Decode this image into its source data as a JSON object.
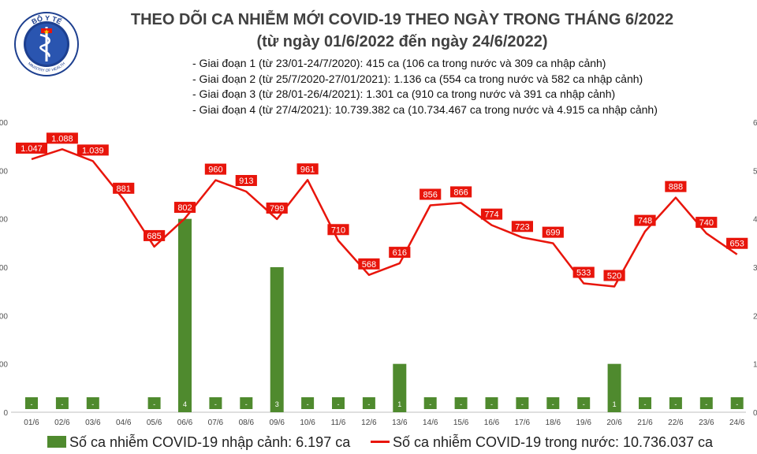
{
  "header": {
    "title": "THEO DÕI CA NHIỄM MỚI COVID-19 THEO NGÀY TRONG THÁNG 6/2022",
    "subtitle": "(từ ngày 01/6/2022 đến ngày 24/6/2022)",
    "phases": [
      "- Giai đoạn 1 (từ 23/01-24/7/2020): 415 ca (106 ca trong nước và 309 ca nhập cảnh)",
      "- Giai đoạn 2 (từ 25/7/2020-27/01/2021): 1.136 ca (554 ca trong nước và 582 ca nhập cảnh)",
      "- Giai đoạn 3 (từ 28/01-26/4/2021): 1.301 ca (910 ca trong nước và 391 ca nhập cảnh)",
      "- Giai đoạn 4 (từ 27/4/2021): 10.739.382 ca (10.734.467 ca trong nước và 4.915 ca nhập cảnh)"
    ]
  },
  "logo": {
    "text": "BỘ Y TẾ",
    "subtext": "MINISTRY OF HEALTH"
  },
  "colors": {
    "bar": "#4f8a2e",
    "line": "#e8150b",
    "label_box": "#e8150b",
    "title": "#404040"
  },
  "chart_data": {
    "type": "bar+line",
    "categories": [
      "01/6",
      "02/6",
      "03/6",
      "04/6",
      "05/6",
      "06/6",
      "07/6",
      "08/6",
      "09/6",
      "10/6",
      "11/6",
      "12/6",
      "13/6",
      "14/6",
      "15/6",
      "16/6",
      "17/6",
      "18/6",
      "19/6",
      "20/6",
      "21/6",
      "22/6",
      "23/6",
      "24/6"
    ],
    "series": [
      {
        "name": "Số ca nhiễm COVID-19 nhập cảnh: 6.197 ca",
        "type": "bar",
        "axis": "right",
        "values": [
          0,
          0,
          0,
          0,
          0,
          4,
          0,
          0,
          3,
          0,
          0,
          0,
          1,
          0,
          0,
          0,
          0,
          0,
          0,
          1,
          0,
          0,
          0,
          0
        ],
        "labels": [
          "-",
          "-",
          "-",
          "",
          "-",
          "4",
          "-",
          "-",
          "3",
          "-",
          "-",
          "-",
          "1",
          "-",
          "-",
          "-",
          "-",
          "-",
          "-",
          "1",
          "-",
          "-",
          "-",
          "-"
        ]
      },
      {
        "name": "Số ca nhiễm COVID-19 trong nước: 10.736.037 ca",
        "type": "line",
        "axis": "left",
        "values": [
          1047,
          1088,
          1039,
          881,
          685,
          802,
          960,
          913,
          799,
          961,
          710,
          568,
          616,
          856,
          866,
          774,
          723,
          699,
          533,
          520,
          748,
          888,
          740,
          653
        ],
        "labels": [
          "1.047",
          "1.088",
          "1.039",
          "881",
          "685",
          "802",
          "960",
          "913",
          "799",
          "961",
          "710",
          "568",
          "616",
          "856",
          "866",
          "774",
          "723",
          "699",
          "533",
          "520",
          "748",
          "888",
          "740",
          "653"
        ]
      }
    ],
    "left_ylim": [
      0,
      1200
    ],
    "left_ticks": [
      "0",
      "00",
      "00",
      "00",
      "00",
      "00",
      "00"
    ],
    "right_ylim": [
      0,
      6
    ],
    "right_ticks": [
      "0",
      "1",
      "2",
      "3",
      "4",
      "5",
      "6"
    ],
    "legend": {
      "bar_label": "Số ca nhiễm COVID-19 nhập cảnh: 6.197 ca",
      "line_label": "Số ca nhiễm COVID-19 trong nước: 10.736.037 ca"
    }
  }
}
